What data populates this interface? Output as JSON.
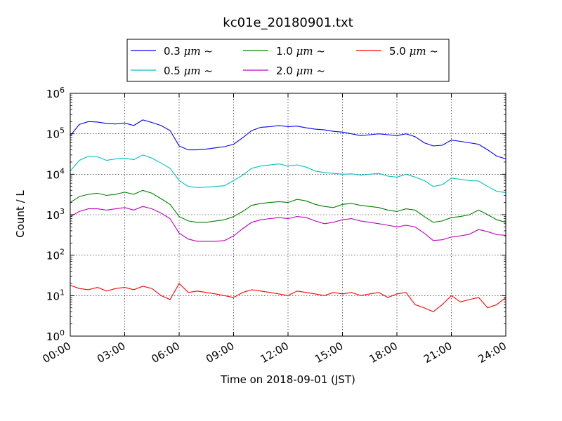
{
  "chart_data": {
    "type": "line",
    "title": "kc01e_20180901.txt",
    "xlabel": "Time on 2018-09-01 (JST)",
    "ylabel": "Count / L",
    "yscale": "log",
    "ylim": [
      1,
      1000000
    ],
    "xlim": [
      0,
      24
    ],
    "grid": true,
    "legend_position": "top-center",
    "x_ticks": [
      0,
      3,
      6,
      9,
      12,
      15,
      18,
      21,
      24
    ],
    "x_tick_labels": [
      "00:00",
      "03:00",
      "06:00",
      "09:00",
      "12:00",
      "15:00",
      "18:00",
      "21:00",
      "24:00"
    ],
    "y_tick_exponents": [
      0,
      1,
      2,
      3,
      4,
      5,
      6
    ],
    "y_tick_base": "10",
    "legend": [
      {
        "name": "0.3 μm ~",
        "label": "0.3",
        "color": "#0000ff"
      },
      {
        "name": "1.0 μm ~",
        "label": "1.0",
        "color": "#008000"
      },
      {
        "name": "5.0 μm ~",
        "label": "5.0",
        "color": "#ff0000"
      },
      {
        "name": "0.5 μm ~",
        "label": "0.5",
        "color": "#00bfbf"
      },
      {
        "name": "2.0 μm ~",
        "label": "2.0",
        "color": "#bf00bf"
      }
    ],
    "legend_unit": "μm",
    "legend_tilde": "~",
    "x_hours": [
      0.0,
      0.5,
      1.0,
      1.5,
      2.0,
      2.5,
      3.0,
      3.5,
      4.0,
      4.5,
      5.0,
      5.5,
      6.0,
      6.5,
      7.0,
      7.5,
      8.0,
      8.5,
      9.0,
      9.5,
      10.0,
      10.5,
      11.0,
      11.5,
      12.0,
      12.5,
      13.0,
      13.5,
      14.0,
      14.5,
      15.0,
      15.5,
      16.0,
      16.5,
      17.0,
      17.5,
      18.0,
      18.5,
      19.0,
      19.5,
      20.0,
      20.5,
      21.0,
      21.5,
      22.0,
      22.5,
      23.0,
      23.5,
      24.0
    ],
    "series": [
      {
        "name": "0.3 μm ~",
        "color": "#0000ff",
        "values": [
          90000,
          170000,
          200000,
          195000,
          180000,
          175000,
          185000,
          160000,
          220000,
          190000,
          160000,
          120000,
          50000,
          40000,
          40000,
          42000,
          45000,
          48000,
          55000,
          80000,
          120000,
          145000,
          150000,
          160000,
          150000,
          155000,
          140000,
          130000,
          125000,
          115000,
          110000,
          100000,
          90000,
          95000,
          100000,
          95000,
          90000,
          100000,
          85000,
          60000,
          50000,
          52000,
          70000,
          65000,
          60000,
          55000,
          40000,
          28000,
          24000
        ]
      },
      {
        "name": "0.5 μm ~",
        "color": "#00bfbf",
        "values": [
          12000,
          22000,
          28000,
          27000,
          22000,
          24000,
          25000,
          23000,
          30000,
          25000,
          19000,
          14000,
          7000,
          5000,
          4700,
          4800,
          5000,
          5200,
          7000,
          9500,
          14000,
          16000,
          17000,
          18000,
          16000,
          17000,
          15000,
          12000,
          11000,
          10500,
          10000,
          10200,
          9500,
          10000,
          10500,
          9000,
          8500,
          10000,
          8500,
          7000,
          5000,
          5500,
          8000,
          7500,
          7000,
          6800,
          5000,
          3800,
          3500
        ]
      },
      {
        "name": "1.0 μm ~",
        "color": "#008000",
        "values": [
          2000,
          2800,
          3200,
          3400,
          3000,
          3200,
          3600,
          3200,
          4000,
          3400,
          2500,
          1800,
          900,
          700,
          650,
          650,
          700,
          750,
          900,
          1200,
          1700,
          1900,
          2000,
          2100,
          2000,
          2400,
          2200,
          1800,
          1600,
          1500,
          1800,
          1900,
          1700,
          1600,
          1500,
          1300,
          1200,
          1400,
          1300,
          900,
          650,
          700,
          850,
          900,
          1000,
          1300,
          1000,
          750,
          650
        ]
      },
      {
        "name": "2.0 μm ~",
        "color": "#bf00bf",
        "values": [
          900,
          1200,
          1400,
          1400,
          1300,
          1400,
          1500,
          1300,
          1600,
          1400,
          1100,
          800,
          350,
          250,
          220,
          220,
          220,
          230,
          300,
          450,
          650,
          750,
          800,
          850,
          800,
          900,
          850,
          700,
          600,
          650,
          750,
          800,
          700,
          650,
          600,
          550,
          500,
          550,
          500,
          350,
          230,
          240,
          280,
          300,
          330,
          430,
          380,
          320,
          310
        ]
      },
      {
        "name": "5.0 μm ~",
        "color": "#ff0000",
        "values": [
          18,
          15,
          14,
          16,
          13,
          15,
          16,
          14,
          17,
          15,
          10,
          8,
          20,
          12,
          13,
          12,
          11,
          10,
          9,
          12,
          14,
          13,
          12,
          11,
          10,
          13,
          12,
          11,
          10,
          12,
          11,
          12,
          10,
          11,
          12,
          9,
          11,
          12,
          6,
          5,
          4,
          6,
          10,
          7,
          8,
          9,
          5,
          6,
          9
        ]
      }
    ]
  }
}
